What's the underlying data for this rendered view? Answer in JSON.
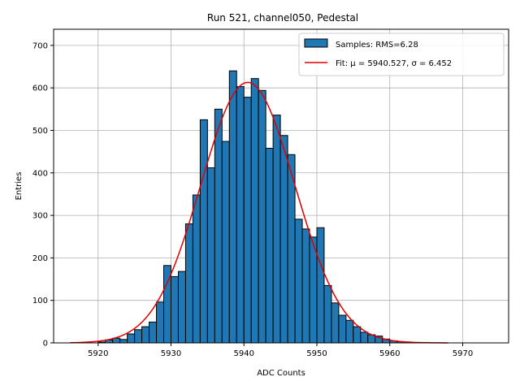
{
  "chart_data": {
    "type": "bar",
    "title": "Run 521, channel050, Pedestal",
    "xlabel": "ADC Counts",
    "ylabel": "Entries",
    "xlim": [
      5913.9,
      5976.3
    ],
    "ylim": [
      0,
      738
    ],
    "x_ticks": [
      5920,
      5930,
      5940,
      5950,
      5960,
      5970
    ],
    "y_ticks": [
      0,
      100,
      200,
      300,
      400,
      500,
      600,
      700
    ],
    "grid": true,
    "legend_position": "top-right",
    "bar_color": "#1f77b4",
    "bar_edge_color": "#000000",
    "fit_color": "#e00000",
    "bins": {
      "start": 5920,
      "width": 1,
      "values": [
        2,
        7,
        11,
        8,
        21,
        31,
        38,
        49,
        96,
        182,
        156,
        168,
        280,
        348,
        525,
        412,
        550,
        474,
        640,
        603,
        578,
        622,
        594,
        458,
        536,
        488,
        443,
        291,
        268,
        249,
        271,
        135,
        94,
        65,
        53,
        38,
        25,
        19,
        16,
        9,
        5,
        3,
        2,
        1
      ]
    },
    "fit": {
      "mu": 5940.527,
      "sigma": 6.452,
      "amplitude": 613,
      "x_range": [
        5916.2,
        5968.0
      ]
    },
    "legend": [
      {
        "kind": "patch",
        "label": "Samples: RMS=6.28"
      },
      {
        "kind": "line",
        "label": "Fit: μ = 5940.527, σ = 6.452"
      }
    ]
  }
}
